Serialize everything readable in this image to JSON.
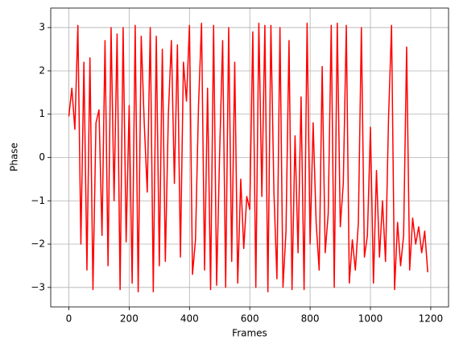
{
  "chart_data": {
    "type": "line",
    "x_label": "Frames",
    "y_label": "Phase",
    "x": [
      0,
      10,
      20,
      30,
      40,
      50,
      60,
      70,
      80,
      90,
      100,
      110,
      120,
      130,
      140,
      150,
      160,
      170,
      180,
      190,
      200,
      210,
      220,
      230,
      240,
      250,
      260,
      270,
      280,
      290,
      300,
      310,
      320,
      330,
      340,
      350,
      360,
      370,
      380,
      390,
      400,
      410,
      420,
      430,
      440,
      450,
      460,
      470,
      480,
      490,
      500,
      510,
      520,
      530,
      540,
      550,
      560,
      570,
      580,
      590,
      600,
      610,
      620,
      630,
      640,
      650,
      660,
      670,
      680,
      690,
      700,
      710,
      720,
      730,
      740,
      750,
      760,
      770,
      780,
      790,
      800,
      810,
      820,
      830,
      840,
      850,
      860,
      870,
      880,
      890,
      900,
      910,
      920,
      930,
      940,
      950,
      960,
      970,
      980,
      990,
      1000,
      1010,
      1020,
      1030,
      1040,
      1050,
      1060,
      1070,
      1080,
      1090,
      1100,
      1110,
      1120,
      1130,
      1140,
      1150,
      1160,
      1170,
      1180,
      1190
    ],
    "values": [
      0.95,
      1.6,
      0.65,
      3.05,
      -2.0,
      2.2,
      -2.6,
      2.3,
      -3.05,
      0.8,
      1.1,
      -1.8,
      2.7,
      -2.5,
      3.0,
      -1.0,
      2.85,
      -3.05,
      3.0,
      -1.95,
      1.2,
      -2.9,
      3.05,
      -3.1,
      2.8,
      0.8,
      -0.8,
      3.0,
      -3.1,
      2.8,
      -2.5,
      2.5,
      -2.4,
      1.0,
      2.7,
      -0.6,
      2.6,
      -2.3,
      2.2,
      1.3,
      3.05,
      -2.7,
      -1.9,
      1.2,
      3.1,
      -2.6,
      1.6,
      -3.05,
      3.05,
      -2.95,
      0.1,
      2.7,
      -3.0,
      3.0,
      -2.4,
      2.2,
      -2.9,
      -0.5,
      -2.1,
      -0.9,
      -1.2,
      2.9,
      -3.0,
      3.1,
      -0.9,
      3.05,
      -3.1,
      3.05,
      -0.8,
      -2.8,
      3.0,
      -3.0,
      -1.7,
      2.7,
      -3.05,
      0.5,
      -2.2,
      1.4,
      -3.05,
      3.1,
      -2.0,
      0.8,
      -1.5,
      -2.6,
      2.1,
      -2.2,
      -1.3,
      3.05,
      -3.0,
      3.1,
      -1.6,
      -0.6,
      3.05,
      -2.9,
      -1.9,
      -2.6,
      -1.5,
      3.0,
      -2.3,
      -1.8,
      0.7,
      -2.9,
      -0.3,
      -2.3,
      -1.0,
      -2.4,
      0.9,
      3.05,
      -3.05,
      -1.5,
      -2.5,
      -1.8,
      2.55,
      -2.6,
      -1.4,
      -2.0,
      -1.6,
      -2.2,
      -1.7,
      -2.65
    ],
    "color": "#ff0000",
    "xlim": [
      -60,
      1259
    ],
    "ylim": [
      -3.45,
      3.45
    ],
    "xticks": [
      0,
      200,
      400,
      600,
      800,
      1000,
      1200
    ],
    "yticks": [
      {
        "value": -3,
        "label": "−3"
      },
      {
        "value": -2,
        "label": "−2"
      },
      {
        "value": -1,
        "label": "−1"
      },
      0,
      1,
      2,
      3
    ],
    "grid": true
  }
}
